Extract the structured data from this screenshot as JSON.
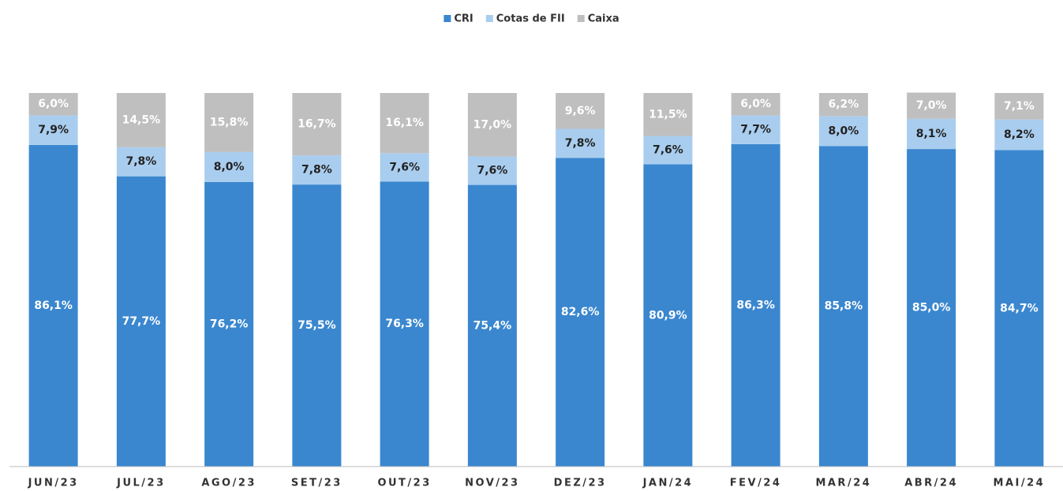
{
  "chart_data": {
    "type": "stacked_bar",
    "categories": [
      "JUN/23",
      "JUL/23",
      "AGO/23",
      "SET/23",
      "OUT/23",
      "NOV/23",
      "DEZ/23",
      "JAN/24",
      "FEV/24",
      "MAR/24",
      "ABR/24",
      "MAI/24"
    ],
    "series": [
      {
        "name": "CRI",
        "color": "#3a87cf",
        "values": [
          86.1,
          77.7,
          76.2,
          75.5,
          76.3,
          75.4,
          82.6,
          80.9,
          86.3,
          85.8,
          85.0,
          84.7
        ],
        "value_labels": [
          "86,1%",
          "77,7%",
          "76,2%",
          "75,5%",
          "76,3%",
          "75,4%",
          "82,6%",
          "80,9%",
          "86,3%",
          "85,8%",
          "85,0%",
          "84,7%"
        ]
      },
      {
        "name": "Cotas de FII",
        "color": "#a9cdee",
        "values": [
          7.9,
          7.8,
          8.0,
          7.8,
          7.6,
          7.6,
          7.8,
          7.6,
          7.7,
          8.0,
          8.1,
          8.2
        ],
        "value_labels": [
          "7,9%",
          "7,8%",
          "8,0%",
          "7,8%",
          "7,6%",
          "7,6%",
          "7,8%",
          "7,6%",
          "7,7%",
          "8,0%",
          "8,1%",
          "8,2%"
        ]
      },
      {
        "name": "Caixa",
        "color": "#bfbfbf",
        "values": [
          6.0,
          14.5,
          15.8,
          16.7,
          16.1,
          17.0,
          9.6,
          11.5,
          6.0,
          6.2,
          7.0,
          7.1
        ],
        "value_labels": [
          "6,0%",
          "14,5%",
          "15,8%",
          "16,7%",
          "16,1%",
          "17,0%",
          "9,6%",
          "11,5%",
          "6,0%",
          "6,2%",
          "7,0%",
          "7,1%"
        ]
      }
    ],
    "ylim": [
      0,
      100
    ]
  }
}
